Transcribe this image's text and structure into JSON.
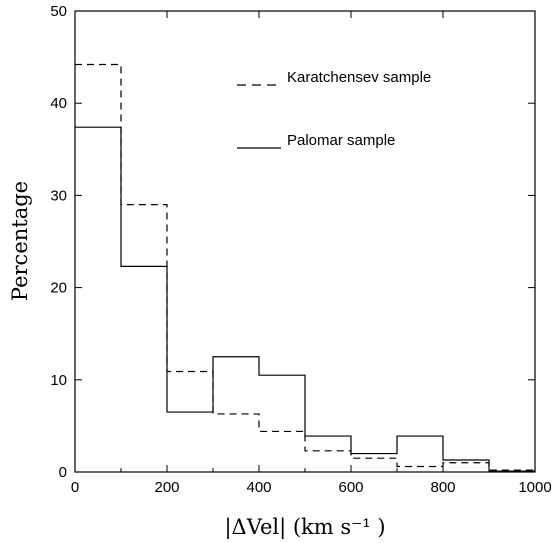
{
  "chart_data": {
    "type": "histogram",
    "title": "",
    "xlabel": "|ΔVel| (km s⁻¹ )",
    "ylabel": "Percentage",
    "xlim": [
      0,
      1000
    ],
    "ylim": [
      0,
      50
    ],
    "x_ticks": [
      0,
      200,
      400,
      600,
      800,
      1000
    ],
    "y_ticks": [
      0,
      10,
      20,
      30,
      40,
      50
    ],
    "bin_edges": [
      0,
      100,
      200,
      300,
      400,
      500,
      600,
      700,
      800,
      900,
      1000
    ],
    "grid": false,
    "legend_position": "top-right",
    "series": [
      {
        "name": "Karatchensev sample",
        "line_style": "dashed",
        "color": "#000000",
        "values": [
          44.2,
          29.0,
          10.9,
          6.3,
          4.4,
          2.3,
          1.5,
          0.6,
          1.0,
          0.2
        ]
      },
      {
        "name": "Palomar sample",
        "line_style": "solid",
        "color": "#000000",
        "values": [
          37.4,
          22.3,
          6.5,
          12.5,
          10.5,
          3.9,
          2.0,
          3.9,
          1.3,
          0.1
        ]
      }
    ]
  }
}
